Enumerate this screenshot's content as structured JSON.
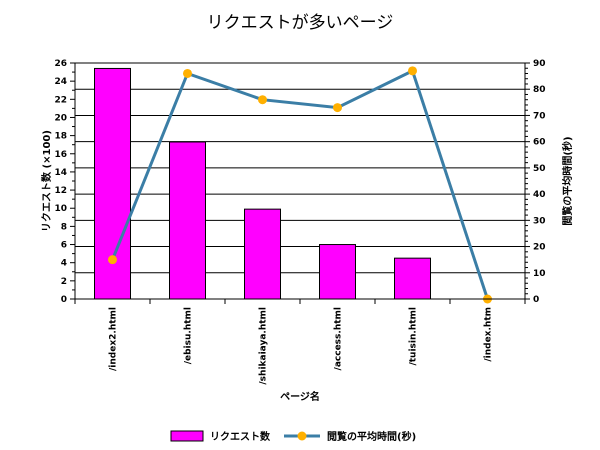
{
  "chart_data": {
    "type": "bar+line",
    "title": "リクエストが多いページ",
    "categories": [
      "/index2.html",
      "/ebisu.html",
      "/shikaiaya.html",
      "/access.html",
      "/tuisin.html",
      "/index.htm"
    ],
    "series": [
      {
        "name": "リクエスト数",
        "type": "bar",
        "axis": "left",
        "color": "#ff00ff",
        "values": [
          25.4,
          17.3,
          9.9,
          6.0,
          4.5,
          0
        ]
      },
      {
        "name": "閲覧の平均時間(秒)",
        "type": "line",
        "axis": "right",
        "color": "#3b7ea6",
        "marker_color": "#ffb000",
        "values": [
          15,
          86,
          76,
          73,
          87,
          0
        ]
      }
    ],
    "xlabel": "ページ名",
    "ylabel_left": "リクエスト数 (×100)",
    "ylabel_right": "閲覧の平均時間(秒)",
    "ylim_left": [
      0,
      26
    ],
    "ylim_right": [
      0,
      90
    ],
    "yticks_left": [
      0,
      2,
      4,
      6,
      8,
      10,
      12,
      14,
      16,
      18,
      20,
      22,
      24,
      26
    ],
    "yticks_right": [
      0,
      10,
      20,
      30,
      40,
      50,
      60,
      70,
      80,
      90
    ],
    "grid": true,
    "legend_position": "bottom"
  }
}
